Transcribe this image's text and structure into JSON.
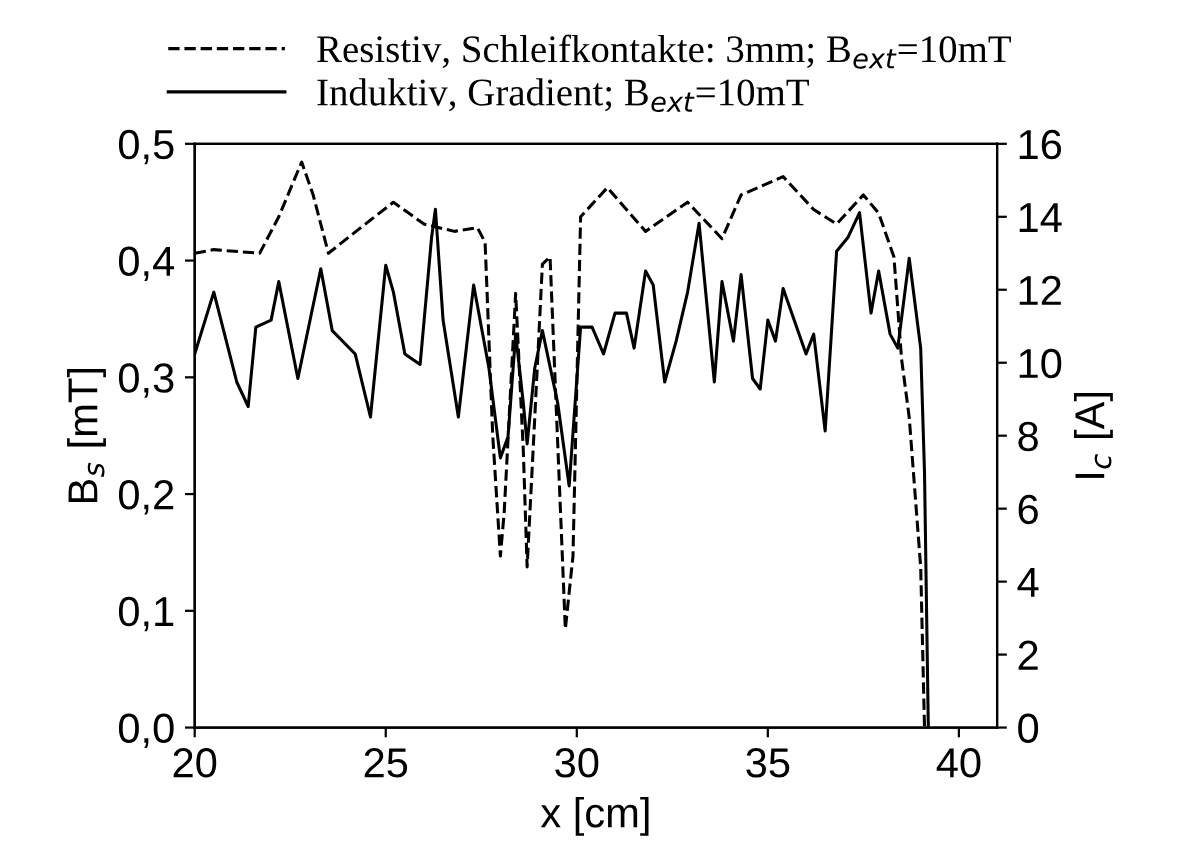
{
  "chart_data": {
    "type": "line",
    "xlabel": "x [cm]",
    "ylabel": "B$_{s}$ [mT]",
    "y2label": "I$_{c}$ [A]",
    "xlim": [
      20,
      41
    ],
    "xticks": [
      20,
      25,
      30,
      35,
      40
    ],
    "ylim": [
      0,
      0.5
    ],
    "yticks": [
      {
        "value": 0,
        "label": "0,0"
      },
      {
        "value": 0.1,
        "label": "0,1"
      },
      {
        "value": 0.2,
        "label": "0,2"
      },
      {
        "value": 0.3,
        "label": "0,3"
      },
      {
        "value": 0.4,
        "label": "0,4"
      },
      {
        "value": 0.5,
        "label": "0,5"
      }
    ],
    "y2lim": [
      0,
      16
    ],
    "y2ticks": [
      0,
      2,
      4,
      6,
      8,
      10,
      12,
      14,
      16
    ],
    "legend": "top",
    "grid": false,
    "series": [
      {
        "name": "Resistiv, Schleifkontakte: 3mm; B$_{ext}$=10mT",
        "color": "#000000",
        "line_style": "dashed",
        "axis": "y2",
        "x": [
          20.0,
          20.5,
          21.7,
          22.2,
          22.8,
          23.1,
          23.5,
          24.1,
          25.2,
          26.0,
          26.8,
          27.4,
          27.6,
          27.8,
          28.0,
          28.1,
          28.4,
          28.6,
          28.7,
          28.9,
          29.1,
          29.3,
          29.5,
          29.7,
          29.9,
          30.1,
          30.8,
          31.8,
          32.9,
          33.8,
          34.3,
          35.4,
          36.2,
          36.8,
          37.5,
          37.9,
          38.3,
          38.5,
          38.7,
          39.0,
          39.1
        ],
        "values": [
          13.0,
          13.1,
          13.0,
          14.0,
          15.5,
          14.6,
          13.0,
          13.5,
          14.4,
          13.8,
          13.6,
          13.7,
          13.3,
          8.0,
          4.7,
          5.9,
          11.9,
          7.6,
          4.4,
          8.5,
          12.7,
          12.9,
          7.8,
          2.7,
          4.7,
          14.0,
          14.8,
          13.6,
          14.4,
          13.4,
          14.6,
          15.1,
          14.2,
          13.8,
          14.6,
          14.1,
          12.9,
          10.1,
          8.5,
          4.4,
          0
        ]
      },
      {
        "name": "Induktiv, Gradient; B$_{ext}$=10mT",
        "color": "#000000",
        "line_style": "solid",
        "x": [
          20.0,
          20.5,
          21.1,
          21.4,
          21.6,
          22.0,
          22.2,
          22.7,
          23.3,
          23.6,
          24.2,
          24.6,
          25.0,
          25.2,
          25.5,
          25.9,
          26.2,
          26.3,
          26.5,
          26.9,
          27.3,
          27.7,
          28.0,
          28.2,
          28.4,
          28.6,
          28.7,
          28.9,
          29.1,
          29.5,
          29.8,
          30.1,
          30.4,
          30.7,
          31.0,
          31.3,
          31.5,
          31.8,
          32.0,
          32.3,
          32.6,
          32.9,
          33.2,
          33.6,
          33.8,
          34.1,
          34.3,
          34.6,
          34.8,
          35.0,
          35.2,
          35.4,
          36.0,
          36.2,
          36.5,
          36.8,
          37.1,
          37.4,
          37.7,
          37.9,
          38.2,
          38.4,
          38.7,
          39.0,
          39.1,
          39.2
        ],
        "values": [
          0.32,
          0.373,
          0.296,
          0.275,
          0.343,
          0.349,
          0.382,
          0.299,
          0.393,
          0.34,
          0.32,
          0.266,
          0.396,
          0.373,
          0.32,
          0.311,
          0.42,
          0.444,
          0.349,
          0.266,
          0.379,
          0.308,
          0.231,
          0.249,
          0.337,
          0.278,
          0.243,
          0.308,
          0.34,
          0.278,
          0.207,
          0.343,
          0.343,
          0.32,
          0.355,
          0.355,
          0.325,
          0.391,
          0.379,
          0.296,
          0.331,
          0.373,
          0.432,
          0.296,
          0.382,
          0.331,
          0.388,
          0.299,
          0.29,
          0.349,
          0.331,
          0.376,
          0.32,
          0.337,
          0.254,
          0.408,
          0.42,
          0.441,
          0.355,
          0.391,
          0.337,
          0.325,
          0.402,
          0.325,
          0.219,
          0.0
        ]
      }
    ]
  }
}
